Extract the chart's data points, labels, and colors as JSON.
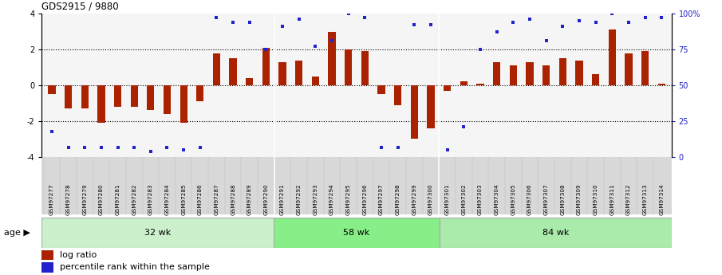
{
  "title": "GDS2915 / 9880",
  "samples": [
    "GSM97277",
    "GSM97278",
    "GSM97279",
    "GSM97280",
    "GSM97281",
    "GSM97282",
    "GSM97283",
    "GSM97284",
    "GSM97285",
    "GSM97286",
    "GSM97287",
    "GSM97288",
    "GSM97289",
    "GSM97290",
    "GSM97291",
    "GSM97292",
    "GSM97293",
    "GSM97294",
    "GSM97295",
    "GSM97296",
    "GSM97297",
    "GSM97298",
    "GSM97299",
    "GSM97300",
    "GSM97301",
    "GSM97302",
    "GSM97303",
    "GSM97304",
    "GSM97305",
    "GSM97306",
    "GSM97307",
    "GSM97308",
    "GSM97309",
    "GSM97310",
    "GSM97311",
    "GSM97312",
    "GSM97313",
    "GSM97314"
  ],
  "log_ratio": [
    -0.5,
    -1.3,
    -1.3,
    -2.1,
    -1.2,
    -1.2,
    -1.4,
    -1.6,
    -2.1,
    -0.9,
    1.8,
    1.5,
    0.4,
    2.1,
    1.3,
    1.4,
    0.5,
    3.0,
    2.0,
    1.9,
    -0.5,
    -1.1,
    -3.0,
    -2.4,
    -0.3,
    0.2,
    0.1,
    1.3,
    1.1,
    1.3,
    1.1,
    1.5,
    1.4,
    0.6,
    3.1,
    1.8,
    1.9,
    0.1
  ],
  "percentile": [
    -2.6,
    -3.5,
    -3.5,
    -3.5,
    -3.5,
    -3.5,
    -3.7,
    -3.5,
    -3.6,
    -3.5,
    3.8,
    3.5,
    3.5,
    2.0,
    3.3,
    3.7,
    2.2,
    2.5,
    4.0,
    3.8,
    -3.5,
    -3.5,
    3.4,
    3.4,
    -3.6,
    -2.3,
    2.0,
    3.0,
    3.5,
    3.7,
    2.5,
    3.3,
    3.6,
    3.5,
    4.0,
    3.5,
    3.8,
    3.8
  ],
  "groups": [
    {
      "label": "32 wk",
      "start": 0,
      "end": 14,
      "color": "#ccf0cc"
    },
    {
      "label": "58 wk",
      "start": 14,
      "end": 24,
      "color": "#88ee88"
    },
    {
      "label": "84 wk",
      "start": 24,
      "end": 38,
      "color": "#aaeaaa"
    }
  ],
  "group_dividers": [
    14,
    24
  ],
  "bar_color": "#aa2200",
  "dot_color": "#2222cc",
  "ylim": [
    -4,
    4
  ],
  "yticks_left": [
    -4,
    -2,
    0,
    2,
    4
  ],
  "yticks_right": [
    0,
    25,
    50,
    75,
    100
  ],
  "ytick_labels_right": [
    "0",
    "25",
    "50",
    "75",
    "100%"
  ],
  "dotted_lines": [
    -2,
    0,
    2
  ],
  "age_label": "age",
  "legend_log": "log ratio",
  "legend_pct": "percentile rank within the sample",
  "plot_bg": "#f5f5f5",
  "xticklabel_bg": "#d8d8d8"
}
